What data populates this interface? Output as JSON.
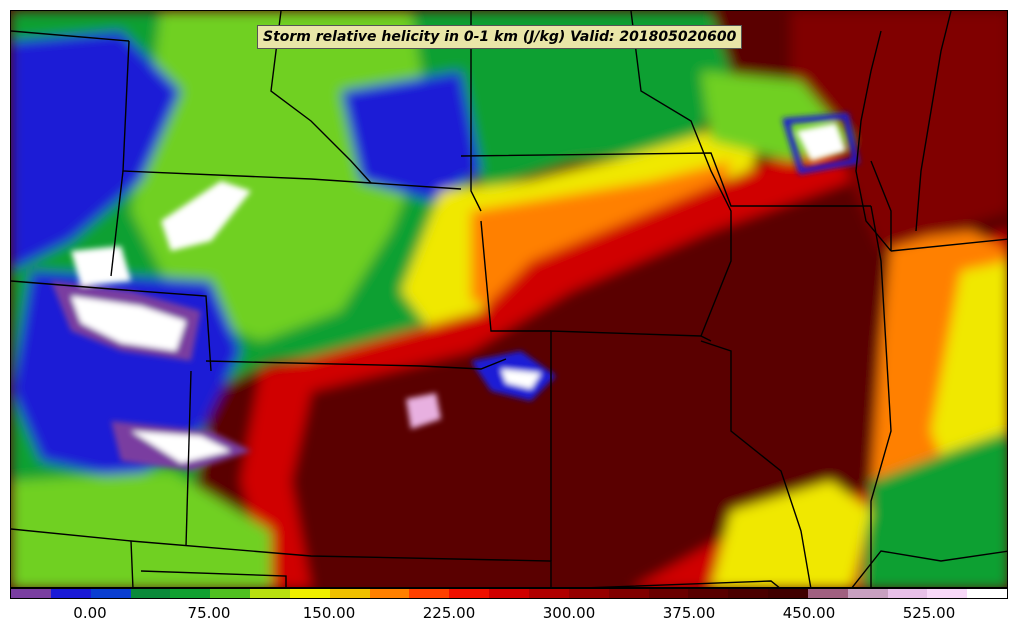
{
  "title": "Storm relative helicity in 0-1 km (J/kg) Valid: 201805020600",
  "colorbar": {
    "tick_labels": [
      "0.00",
      "75.00",
      "150.00",
      "225.00",
      "300.00",
      "375.00",
      "450.00",
      "525.00"
    ],
    "colors": [
      "#7a3ea0",
      "#1a1ad6",
      "#0a3ed0",
      "#0a8a3a",
      "#10a030",
      "#50c020",
      "#b8e010",
      "#f0f000",
      "#f0c000",
      "#ff8000",
      "#ff4000",
      "#f01000",
      "#d00000",
      "#b00000",
      "#960000",
      "#800000",
      "#6a0000",
      "#580000",
      "#4a0000",
      "#400000",
      "#a06080",
      "#c8a0c0",
      "#e8c0e8",
      "#f8d8f8",
      "#ffffff"
    ]
  },
  "map": {
    "colors": {
      "deep_red": "#5a0000",
      "dark_red": "#800000",
      "red": "#d00000",
      "orange": "#ff8000",
      "yellow": "#f0e800",
      "light_green": "#70d020",
      "green": "#10a030",
      "blue": "#1a1ad6",
      "purple": "#7a3ea0",
      "white": "#ffffff",
      "pink": "#e8b0e0",
      "border": "#000000"
    }
  }
}
